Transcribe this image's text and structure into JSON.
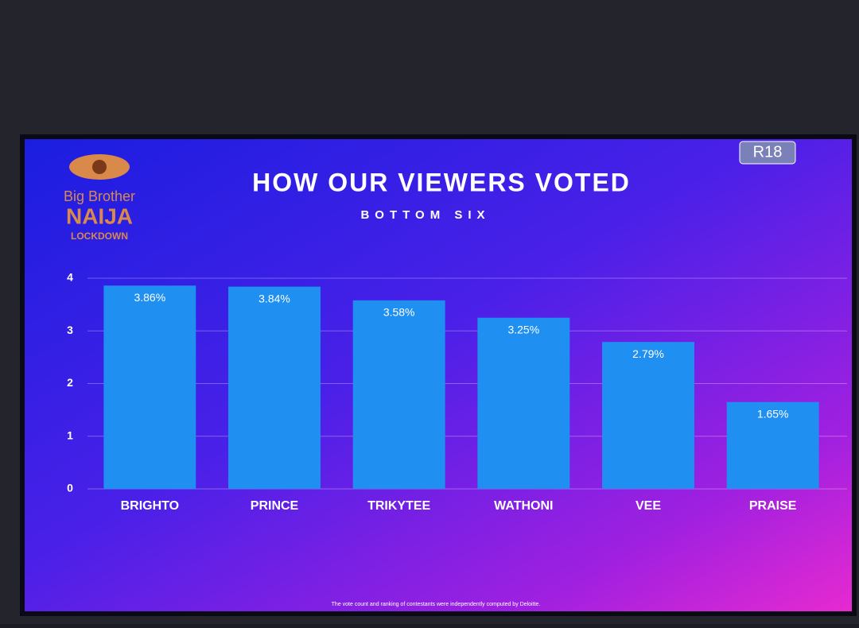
{
  "chart_data": {
    "type": "bar",
    "title": "HOW OUR VIEWERS VOTED",
    "subtitle": "BOTTOM SIX",
    "logo": {
      "line1": "Big Brother",
      "line2": "NAIJA",
      "line3": "LOCKDOWN"
    },
    "badge": "R18",
    "footnote": "The vote count and ranking of contestants were independently computed by Deloitte.",
    "categories": [
      "BRIGHTO",
      "PRINCE",
      "TRIKYTEE",
      "WATHONI",
      "VEE",
      "PRAISE"
    ],
    "values": [
      3.86,
      3.84,
      3.58,
      3.25,
      2.79,
      1.65
    ],
    "value_labels": [
      "3.86%",
      "3.84%",
      "3.58%",
      "3.25%",
      "2.79%",
      "1.65%"
    ],
    "color": "#1f8ff2",
    "ylim": [
      0,
      4
    ],
    "yticks": [
      0,
      1,
      2,
      3,
      4
    ],
    "grid": true
  }
}
